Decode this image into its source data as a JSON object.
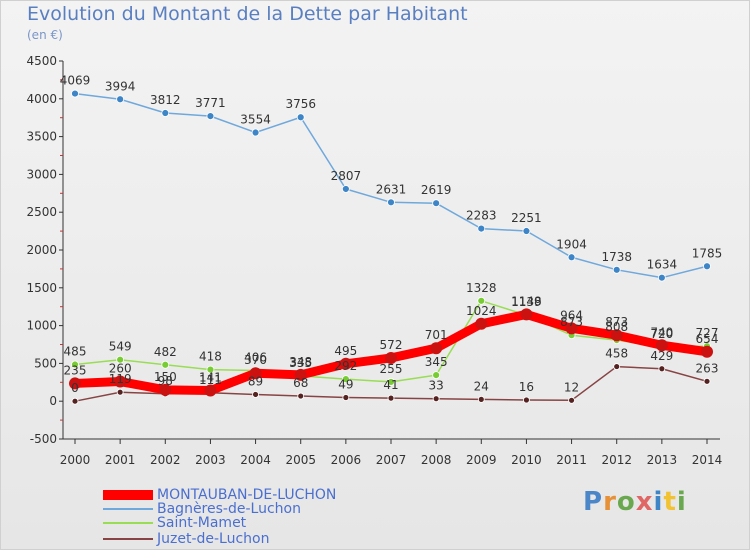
{
  "title": "Evolution du Montant de la Dette par Habitant",
  "subtitle": "(en €)",
  "logo_text": "Proxiti",
  "chart_data": {
    "type": "line",
    "title": "Evolution du Montant de la Dette par Habitant",
    "subtitle": "(en €)",
    "xlabel": "",
    "ylabel": "",
    "ylim": [
      -500,
      4500
    ],
    "yticks": [
      -500,
      0,
      500,
      1000,
      1500,
      2000,
      2500,
      3000,
      3500,
      4000,
      4500
    ],
    "grid": false,
    "legend_position": "bottom-left",
    "categories": [
      "2000",
      "2001",
      "2002",
      "2003",
      "2004",
      "2005",
      "2006",
      "2007",
      "2008",
      "2009",
      "2010",
      "2011",
      "2012",
      "2013",
      "2014"
    ],
    "series": [
      {
        "name": "MONTAUBAN-DE-LUCHON",
        "color": "#ff0000",
        "marker": "#cc1111",
        "values": [
          235,
          260,
          150,
          141,
          370,
          348,
          495,
          572,
          701,
          1024,
          1148,
          964,
          873,
          740,
          654
        ],
        "labels": [
          "235",
          "260",
          "150",
          "141",
          "370",
          "348",
          "495",
          "572",
          "701",
          "1024",
          "1148",
          "964",
          "873",
          "740",
          "654"
        ]
      },
      {
        "name": "Bagnères-de-Luchon",
        "color": "#6fa8dc",
        "marker": "#3d85c6",
        "values": [
          4069,
          3994,
          3812,
          3771,
          3554,
          3756,
          2807,
          2631,
          2619,
          2283,
          2251,
          1904,
          1738,
          1634,
          1785
        ],
        "labels": [
          "4069",
          "3994",
          "3812",
          "3771",
          "3554",
          "3756",
          "2807",
          "2631",
          "2619",
          "2283",
          "2251",
          "1904",
          "1738",
          "1634",
          "1785"
        ]
      },
      {
        "name": "Saint-Mamet",
        "color": "#99dd55",
        "marker": "#77cc33",
        "values": [
          485,
          549,
          482,
          418,
          406,
          335,
          292,
          255,
          345,
          1328,
          1139,
          873,
          808,
          720,
          727
        ],
        "labels": [
          "485",
          "549",
          "482",
          "418",
          "406",
          "335",
          "292",
          "255",
          "345",
          "1328",
          "1139",
          "873",
          "808",
          "720",
          "727"
        ]
      },
      {
        "name": "Juzet-de-Luchon",
        "color": "#884444",
        "marker": "#552222",
        "values": [
          0,
          119,
          98,
          111,
          89,
          68,
          49,
          41,
          33,
          24,
          16,
          12,
          458,
          429,
          263
        ],
        "labels": [
          "0",
          "119",
          "98",
          "111",
          "89",
          "68",
          "49",
          "41",
          "33",
          "24",
          "16",
          "12",
          "458",
          "429",
          "263"
        ]
      }
    ]
  }
}
